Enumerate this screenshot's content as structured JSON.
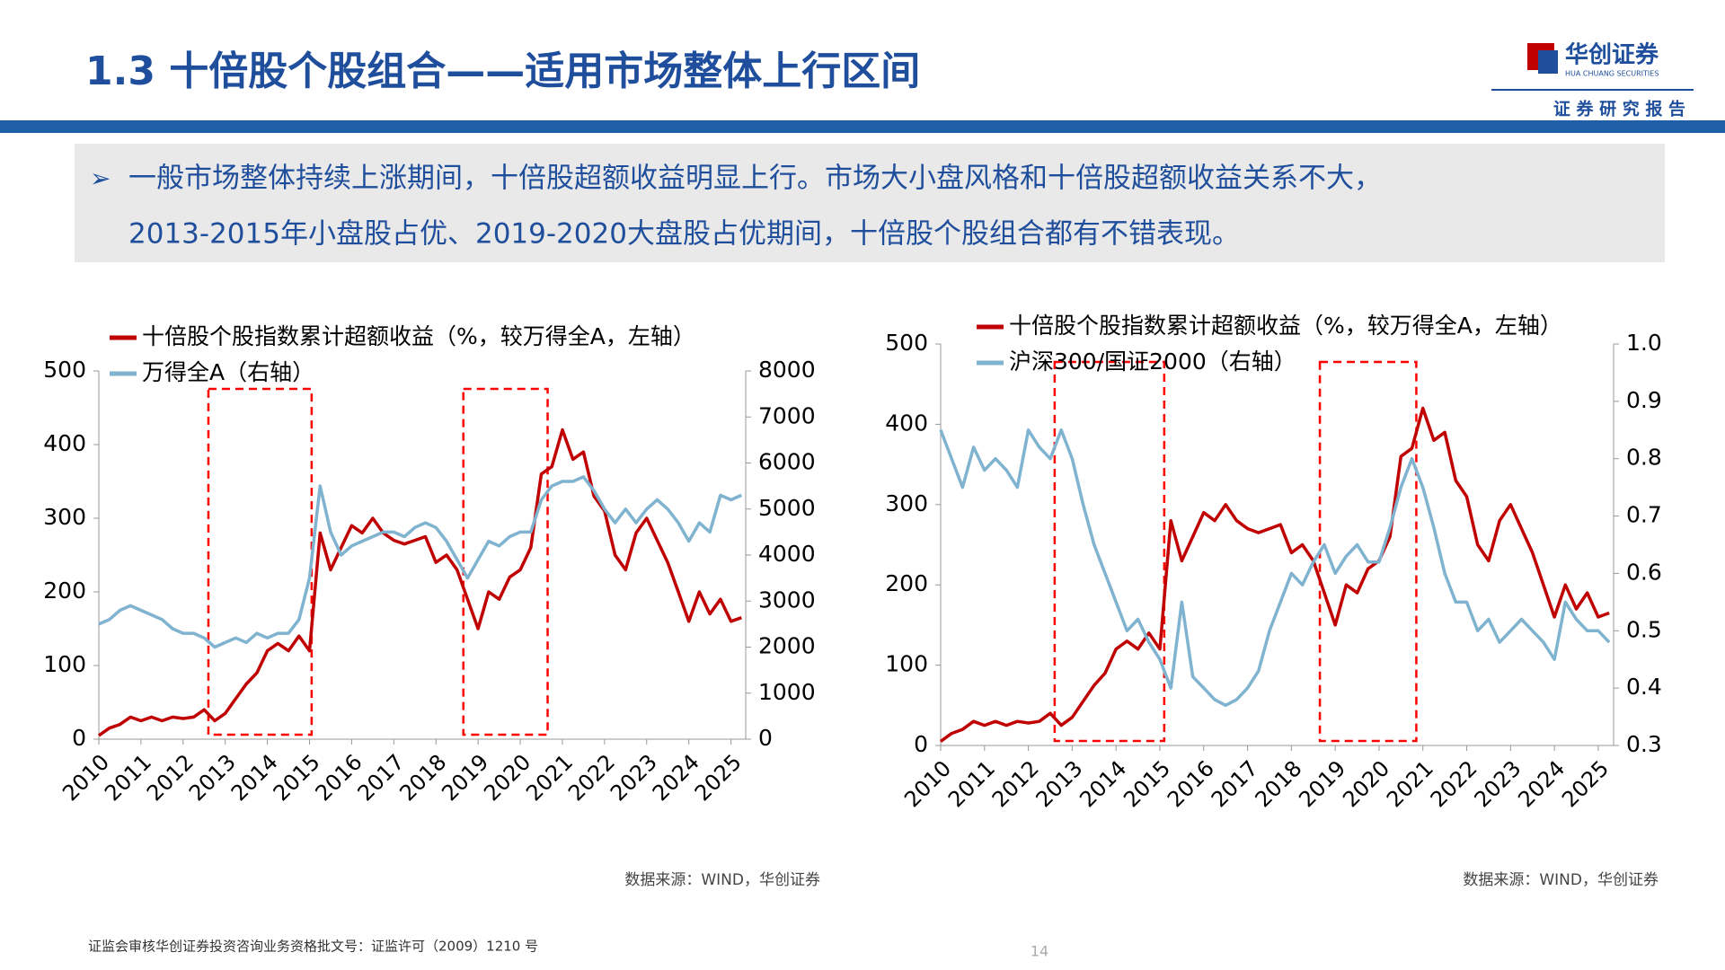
{
  "header": {
    "title": "1.3 十倍股个股组合——适用市场整体上行区间",
    "logo_cn": "华创证券",
    "logo_en": "HUA CHUANG SECURITIES",
    "report_tag": "证 券 研 究 报 告"
  },
  "summary": {
    "bullet": "➢",
    "lines": [
      "一般市场整体持续上涨期间，十倍股超额收益明显上行。市场大小盘风格和十倍股超额收益关系不大，",
      "2013-2015年小盘股占优、2019-2020大盘股占优期间，十倍股个股组合都有不错表现。"
    ]
  },
  "footer": {
    "license": "证监会审核华创证券投资咨询业务资格批文号：证监许可（2009）1210 号",
    "page": "14"
  },
  "chart_data": [
    {
      "type": "line",
      "source": "数据来源：WIND，华创证券",
      "x": [
        2010,
        2010.25,
        2010.5,
        2010.75,
        2011,
        2011.25,
        2011.5,
        2011.75,
        2012,
        2012.25,
        2012.5,
        2012.75,
        2013,
        2013.25,
        2013.5,
        2013.75,
        2014,
        2014.25,
        2014.5,
        2014.75,
        2015,
        2015.25,
        2015.5,
        2015.75,
        2016,
        2016.25,
        2016.5,
        2016.75,
        2017,
        2017.25,
        2017.5,
        2017.75,
        2018,
        2018.25,
        2018.5,
        2018.75,
        2019,
        2019.25,
        2019.5,
        2019.75,
        2020,
        2020.25,
        2020.5,
        2020.75,
        2021,
        2021.25,
        2021.5,
        2021.75,
        2022,
        2022.25,
        2022.5,
        2022.75,
        2023,
        2023.25,
        2023.5,
        2023.75,
        2024,
        2024.25,
        2024.5,
        2024.75,
        2025,
        2025.25
      ],
      "xlim": [
        2010,
        2025.35
      ],
      "xticks": [
        2010,
        2011,
        2012,
        2013,
        2014,
        2015,
        2016,
        2017,
        2018,
        2019,
        2020,
        2021,
        2022,
        2023,
        2024,
        2025
      ],
      "ylim": [
        0,
        500
      ],
      "yticks": [
        0,
        100,
        200,
        300,
        400,
        500
      ],
      "y2lim": [
        0,
        8000
      ],
      "y2ticks": [
        0,
        1000,
        2000,
        3000,
        4000,
        5000,
        6000,
        7000,
        8000
      ],
      "highlight_ranges": [
        [
          2012.6,
          2015.05
        ],
        [
          2018.65,
          2020.65
        ]
      ],
      "highlight_color": "#ff0000",
      "series": [
        {
          "name": "十倍股个股指数累计超额收益（%，较万得全A，左轴）",
          "color": "#c00000",
          "values": [
            5,
            15,
            20,
            30,
            25,
            30,
            25,
            30,
            28,
            30,
            40,
            25,
            35,
            55,
            75,
            90,
            120,
            130,
            120,
            140,
            120,
            280,
            230,
            260,
            290,
            280,
            300,
            280,
            270,
            265,
            270,
            275,
            240,
            250,
            230,
            190,
            150,
            200,
            190,
            220,
            230,
            260,
            360,
            370,
            420,
            380,
            390,
            330,
            310,
            250,
            230,
            280,
            300,
            270,
            240,
            200,
            160,
            200,
            170,
            190,
            160,
            165
          ]
        },
        {
          "name": "万得全A（右轴）",
          "color": "#7fb3cf",
          "axis": "y2",
          "values": [
            2500,
            2600,
            2800,
            2900,
            2800,
            2700,
            2600,
            2400,
            2300,
            2300,
            2200,
            2000,
            2100,
            2200,
            2100,
            2300,
            2200,
            2300,
            2300,
            2600,
            3500,
            5500,
            4500,
            4000,
            4200,
            4300,
            4400,
            4500,
            4500,
            4400,
            4600,
            4700,
            4600,
            4300,
            3900,
            3500,
            3900,
            4300,
            4200,
            4400,
            4500,
            4500,
            5200,
            5500,
            5600,
            5600,
            5700,
            5400,
            5000,
            4700,
            5000,
            4700,
            5000,
            5200,
            5000,
            4700,
            4300,
            4700,
            4500,
            5300,
            5200,
            5300
          ]
        }
      ]
    },
    {
      "type": "line",
      "source": "数据来源：WIND，华创证券",
      "x": [
        2010,
        2010.25,
        2010.5,
        2010.75,
        2011,
        2011.25,
        2011.5,
        2011.75,
        2012,
        2012.25,
        2012.5,
        2012.75,
        2013,
        2013.25,
        2013.5,
        2013.75,
        2014,
        2014.25,
        2014.5,
        2014.75,
        2015,
        2015.25,
        2015.5,
        2015.75,
        2016,
        2016.25,
        2016.5,
        2016.75,
        2017,
        2017.25,
        2017.5,
        2017.75,
        2018,
        2018.25,
        2018.5,
        2018.75,
        2019,
        2019.25,
        2019.5,
        2019.75,
        2020,
        2020.25,
        2020.5,
        2020.75,
        2021,
        2021.25,
        2021.5,
        2021.75,
        2022,
        2022.25,
        2022.5,
        2022.75,
        2023,
        2023.25,
        2023.5,
        2023.75,
        2024,
        2024.25,
        2024.5,
        2024.75,
        2025,
        2025.25
      ],
      "xlim": [
        2010,
        2025.35
      ],
      "xticks": [
        2010,
        2011,
        2012,
        2013,
        2014,
        2015,
        2016,
        2017,
        2018,
        2019,
        2020,
        2021,
        2022,
        2023,
        2024,
        2025
      ],
      "ylim": [
        0,
        500
      ],
      "yticks": [
        0,
        100,
        200,
        300,
        400,
        500
      ],
      "y2lim": [
        0.3,
        1
      ],
      "y2ticks": [
        0.3,
        0.4,
        0.5,
        0.6,
        0.7,
        0.8,
        0.9,
        {
          "value": 1,
          "label": "1.0"
        }
      ],
      "highlight_ranges": [
        [
          2012.6,
          2015.1
        ],
        [
          2018.65,
          2020.85
        ]
      ],
      "highlight_color": "#ff0000",
      "series": [
        {
          "name": "十倍股个股指数累计超额收益（%，较万得全A，左轴）",
          "color": "#c00000",
          "values": [
            5,
            15,
            20,
            30,
            25,
            30,
            25,
            30,
            28,
            30,
            40,
            25,
            35,
            55,
            75,
            90,
            120,
            130,
            120,
            140,
            120,
            280,
            230,
            260,
            290,
            280,
            300,
            280,
            270,
            265,
            270,
            275,
            240,
            250,
            230,
            190,
            150,
            200,
            190,
            220,
            230,
            260,
            360,
            370,
            420,
            380,
            390,
            330,
            310,
            250,
            230,
            280,
            300,
            270,
            240,
            200,
            160,
            200,
            170,
            190,
            160,
            165
          ]
        },
        {
          "name": "沪深300/国证2000（右轴）",
          "color": "#7fb3cf",
          "axis": "y2",
          "values": [
            0.85,
            0.8,
            0.75,
            0.82,
            0.78,
            0.8,
            0.78,
            0.75,
            0.85,
            0.82,
            0.8,
            0.85,
            0.8,
            0.72,
            0.65,
            0.6,
            0.55,
            0.5,
            0.52,
            0.48,
            0.45,
            0.4,
            0.55,
            0.42,
            0.4,
            0.38,
            0.37,
            0.38,
            0.4,
            0.43,
            0.5,
            0.55,
            0.6,
            0.58,
            0.62,
            0.65,
            0.6,
            0.63,
            0.65,
            0.62,
            0.62,
            0.68,
            0.75,
            0.8,
            0.75,
            0.68,
            0.6,
            0.55,
            0.55,
            0.5,
            0.52,
            0.48,
            0.5,
            0.52,
            0.5,
            0.48,
            0.45,
            0.55,
            0.52,
            0.5,
            0.5,
            0.48
          ]
        }
      ]
    }
  ]
}
